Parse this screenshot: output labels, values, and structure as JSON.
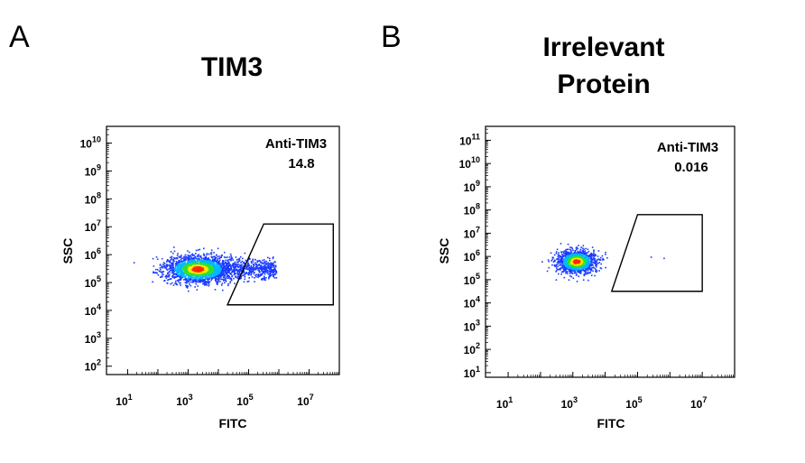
{
  "chart_data": [
    {
      "type": "scatter",
      "subtype": "flow-cytometry-density",
      "panel_letter": "A",
      "title": "TIM3",
      "xlabel": "FITC",
      "ylabel": "SSC",
      "x_scale": "log",
      "y_scale": "log",
      "x_ticks": [
        1,
        3,
        5,
        7
      ],
      "y_ticks": [
        2,
        3,
        4,
        5,
        6,
        7,
        8,
        9,
        10
      ],
      "xlim_log10": [
        0.3,
        8.0
      ],
      "ylim_log10": [
        1.7,
        10.6
      ],
      "gate": {
        "name": "Anti-TIM3",
        "value": "14.8",
        "polygon_log10": [
          [
            4.3,
            4.2
          ],
          [
            5.5,
            7.1
          ],
          [
            7.8,
            7.1
          ],
          [
            7.8,
            4.2
          ]
        ]
      },
      "population": {
        "center_log10": [
          3.3,
          5.5
        ],
        "spread_log10": [
          0.55,
          0.25
        ],
        "tail_to_x_log10": 5.9,
        "color_scale": [
          "#1a3bff",
          "#00b7ff",
          "#2fe02f",
          "#ffe600",
          "#ff2a00"
        ]
      }
    },
    {
      "type": "scatter",
      "subtype": "flow-cytometry-density",
      "panel_letter": "B",
      "title": [
        "Irrelevant",
        "Protein"
      ],
      "xlabel": "FITC",
      "ylabel": "SSC",
      "x_scale": "log",
      "y_scale": "log",
      "x_ticks": [
        1,
        3,
        5,
        7
      ],
      "y_ticks": [
        1,
        2,
        3,
        4,
        5,
        6,
        7,
        8,
        9,
        10,
        11
      ],
      "xlim_log10": [
        0.3,
        8.0
      ],
      "ylim_log10": [
        0.8,
        11.6
      ],
      "gate": {
        "name": "Anti-TIM3",
        "value": "0.016",
        "polygon_log10": [
          [
            4.2,
            4.5
          ],
          [
            5.0,
            7.8
          ],
          [
            7.0,
            7.8
          ],
          [
            7.0,
            4.5
          ]
        ]
      },
      "population": {
        "center_log10": [
          3.1,
          5.8
        ],
        "spread_log10": [
          0.3,
          0.25
        ],
        "tail_to_x_log10": 3.8,
        "color_scale": [
          "#1a3bff",
          "#00b7ff",
          "#2fe02f",
          "#ffe600",
          "#ff2a00"
        ]
      }
    }
  ]
}
